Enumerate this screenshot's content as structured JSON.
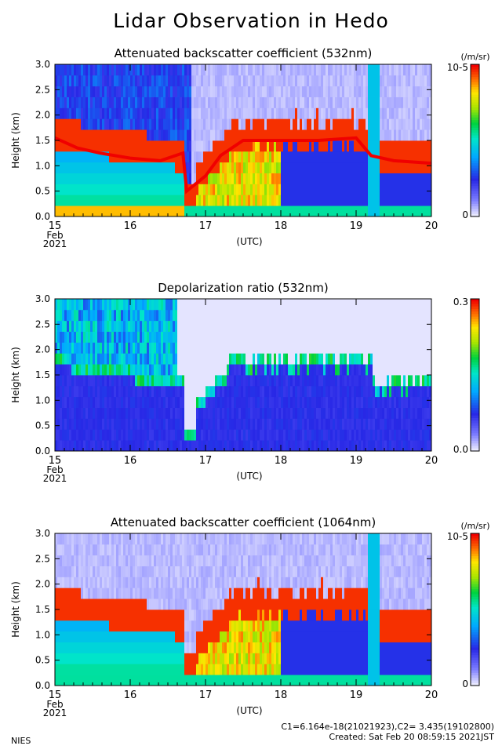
{
  "title": "Lidar Observation in Hedo",
  "footer": {
    "org": "NIES",
    "calib": "C1=6.164e-18(21021923),C2= 3.435(19102800)",
    "created": "Created: Sat Feb 20 08:59:15 2021JST"
  },
  "chart_data": [
    {
      "type": "heatmap",
      "title": "Attenuated backscatter coefficient (532nm)",
      "ylabel": "Height (km)",
      "xlabel": "(UTC)",
      "x_ticks": [
        "15",
        "16",
        "17",
        "18",
        "19",
        "20"
      ],
      "x_sub": [
        "Feb",
        "2021"
      ],
      "y_ticks": [
        "0.0",
        "0.5",
        "1.0",
        "1.5",
        "2.0",
        "2.5",
        "3.0"
      ],
      "xlim": [
        15,
        20
      ],
      "ylim": [
        0,
        3
      ],
      "colorbar": {
        "unit": "(/m/sr)",
        "max": "10-5",
        "min": "0",
        "scale": "log"
      },
      "cloud_base_profile": [
        [
          15.0,
          1.55
        ],
        [
          15.3,
          1.35
        ],
        [
          15.6,
          1.25
        ],
        [
          16.0,
          1.15
        ],
        [
          16.4,
          1.1
        ],
        [
          16.7,
          1.25
        ],
        [
          16.75,
          0.5
        ],
        [
          17.0,
          0.8
        ],
        [
          17.2,
          1.2
        ],
        [
          17.5,
          1.5
        ],
        [
          18.0,
          1.5
        ],
        [
          18.5,
          1.5
        ],
        [
          19.0,
          1.55
        ],
        [
          19.2,
          1.2
        ],
        [
          19.5,
          1.1
        ],
        [
          20.0,
          1.05
        ]
      ]
    },
    {
      "type": "heatmap",
      "title": "Depolarization ratio (532nm)",
      "ylabel": "Height (km)",
      "xlabel": "(UTC)",
      "x_ticks": [
        "15",
        "16",
        "17",
        "18",
        "19",
        "20"
      ],
      "x_sub": [
        "Feb",
        "2021"
      ],
      "y_ticks": [
        "0.0",
        "0.5",
        "1.0",
        "1.5",
        "2.0",
        "2.5",
        "3.0"
      ],
      "xlim": [
        15,
        20
      ],
      "ylim": [
        0,
        3
      ],
      "colorbar": {
        "unit": "",
        "max": "0.3",
        "min": "0.0",
        "scale": "linear"
      }
    },
    {
      "type": "heatmap",
      "title": "Attenuated backscatter coefficient (1064nm)",
      "ylabel": "Height (km)",
      "xlabel": "(UTC)",
      "x_ticks": [
        "15",
        "16",
        "17",
        "18",
        "19",
        "20"
      ],
      "x_sub": [
        "Feb",
        "2021"
      ],
      "y_ticks": [
        "0.0",
        "0.5",
        "1.0",
        "1.5",
        "2.0",
        "2.5",
        "3.0"
      ],
      "xlim": [
        15,
        20
      ],
      "ylim": [
        0,
        3
      ],
      "colorbar": {
        "unit": "(/m/sr)",
        "max": "10-5",
        "min": "0",
        "scale": "log"
      }
    }
  ]
}
